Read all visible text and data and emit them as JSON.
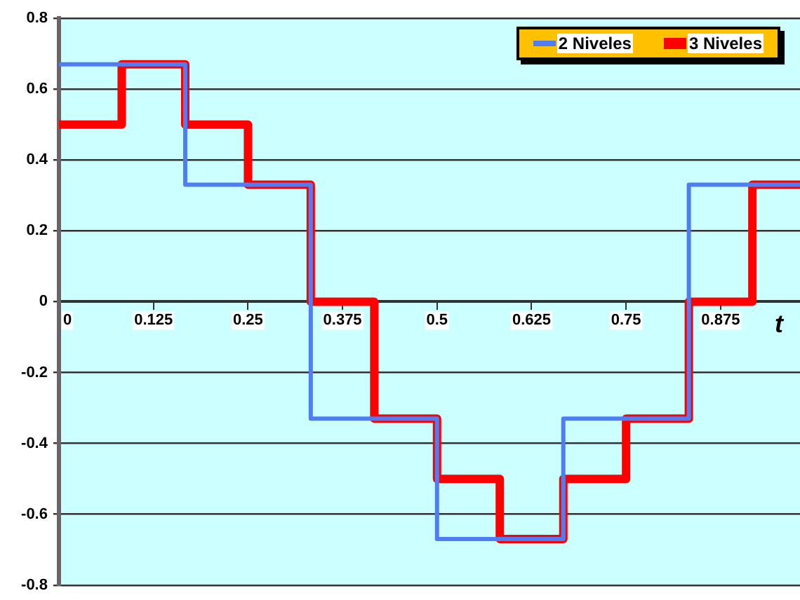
{
  "chart_data": {
    "type": "step",
    "xlabel": "t",
    "xlim": [
      0,
      0.98
    ],
    "xticks": [
      0,
      0.125,
      0.25,
      0.375,
      0.5,
      0.625,
      0.75,
      0.875
    ],
    "ylim": [
      -0.8,
      0.8
    ],
    "yticks": [
      -0.8,
      -0.6,
      -0.4,
      -0.2,
      0,
      0.2,
      0.4,
      0.6,
      0.8
    ],
    "grid": "y",
    "legend": "top right",
    "series": [
      {
        "name": "2 Niveles",
        "color": "#4f7df5",
        "x": [
          0,
          0.167,
          0.333,
          0.5,
          0.667,
          0.833,
          0.98
        ],
        "values": [
          0.67,
          0.33,
          -0.33,
          -0.67,
          -0.33,
          0.33,
          0.33
        ]
      },
      {
        "name": "3 Niveles",
        "color": "#ff0000",
        "x": [
          0,
          0.083,
          0.167,
          0.25,
          0.333,
          0.417,
          0.5,
          0.583,
          0.667,
          0.75,
          0.833,
          0.917,
          0.98
        ],
        "values": [
          0.5,
          0.67,
          0.5,
          0.33,
          0,
          -0.33,
          -0.5,
          -0.67,
          -0.5,
          -0.33,
          0,
          0.33,
          0.33
        ]
      }
    ]
  }
}
